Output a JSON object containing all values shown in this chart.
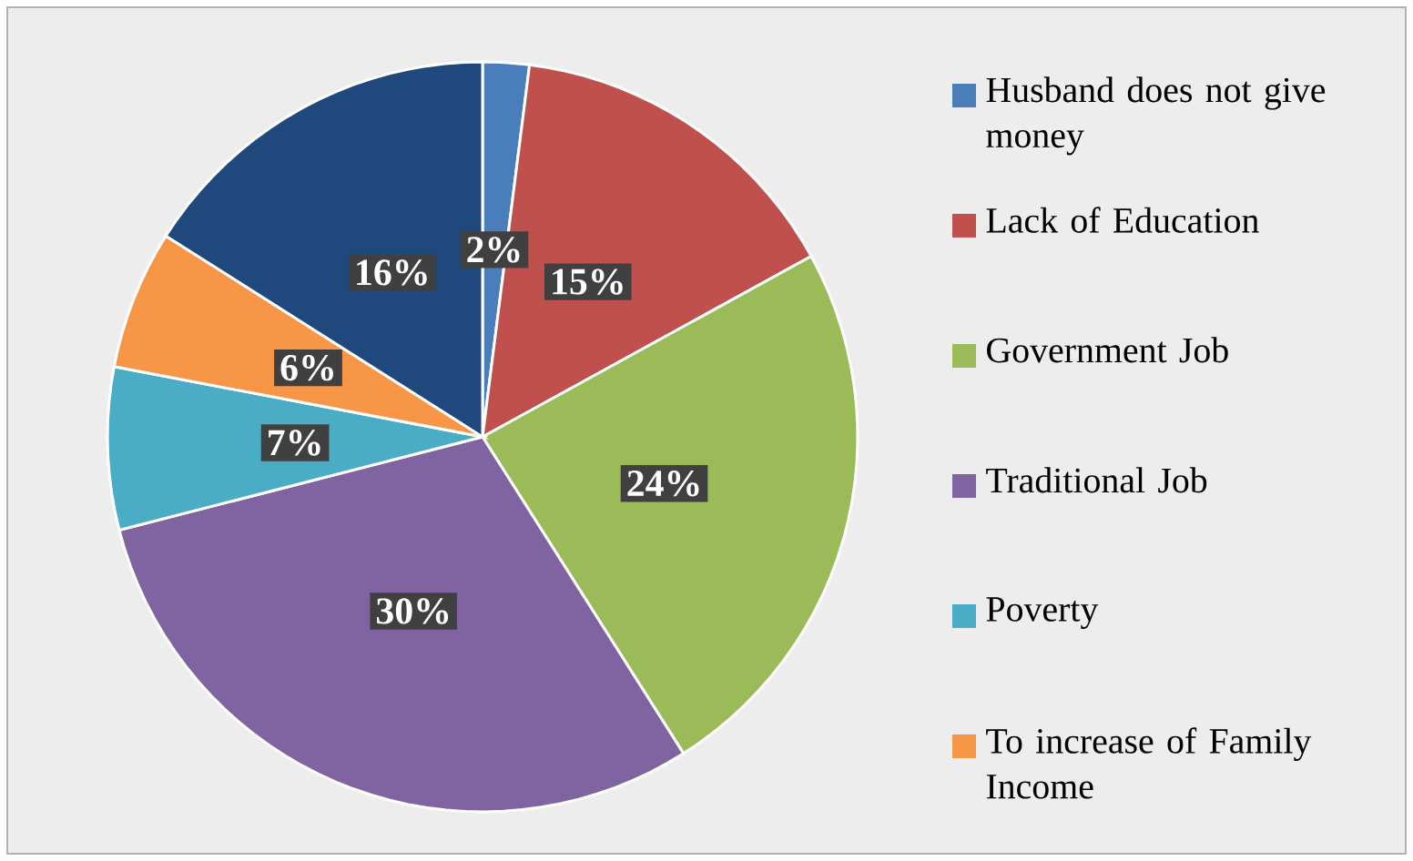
{
  "chart_data": {
    "type": "pie",
    "categories": [
      "Husband does not give money",
      "Lack of Education",
      "Government Job",
      "Traditional Job",
      "Poverty",
      "To increase of Family Income",
      null
    ],
    "values": [
      2,
      15,
      24,
      30,
      7,
      6,
      16
    ],
    "value_labels": [
      "2%",
      "15%",
      "24%",
      "30%",
      "7%",
      "6%",
      "16%"
    ],
    "colors": [
      "#4a7ebb",
      "#c0504d",
      "#9bbb59",
      "#8064a2",
      "#4bacc6",
      "#f79646",
      "#1f497d"
    ],
    "legend": "right"
  }
}
